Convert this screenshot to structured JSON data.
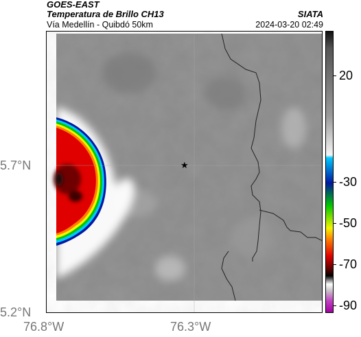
{
  "header": {
    "satellite": "GOES-EAST",
    "product": "Temperatura de Brillo CH13",
    "organization": "SIATA",
    "subtitle": "Vía Medellín - Quibdó 50km",
    "datetime": "2024-03-20 02:49"
  },
  "axes": {
    "y_ticks": [
      {
        "label": "5.7°N",
        "value": 5.7
      },
      {
        "label": "5.2°N",
        "value": 5.2
      }
    ],
    "x_ticks": [
      {
        "label": "76.8°W",
        "value": -76.8
      },
      {
        "label": "76.3°W",
        "value": -76.3
      }
    ]
  },
  "marker": {
    "name": "star-marker",
    "lon": -76.33,
    "lat": 5.7
  },
  "colorbar": {
    "ticks": [
      "20",
      "-30",
      "-50",
      "-70",
      "-90"
    ],
    "colors": {
      "warm_top": "#111111",
      "gray": "#9a9a9a",
      "light": "#f5f5f5",
      "cyan": "#00c8ff",
      "blue": "#0018a0",
      "green": "#00c800",
      "yellow": "#f5f500",
      "orange": "#ff8000",
      "red": "#e00000",
      "dark_red": "#500000",
      "magenta": "#c040c0"
    }
  },
  "colors": {
    "background_gray": "#8a8a8a",
    "cloud_white": "#ffffff",
    "storm_red": "#cc0000",
    "border_line": "#222222"
  }
}
